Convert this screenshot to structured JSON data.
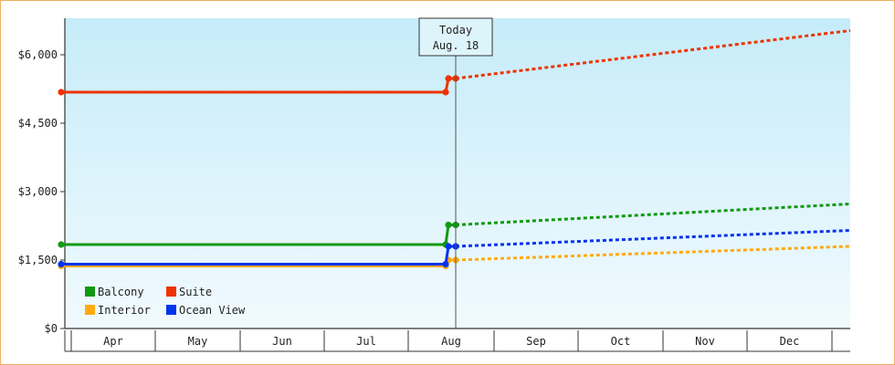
{
  "chart_data": {
    "type": "line",
    "title": "",
    "xlabel": "",
    "ylabel": "",
    "x_axis": {
      "categories": [
        "Apr",
        "May",
        "Jun",
        "Jul",
        "Aug",
        "Sep",
        "Oct",
        "Nov",
        "Dec"
      ]
    },
    "y_axis": {
      "ylim": [
        0,
        6800
      ],
      "ticks": [
        0,
        1500,
        3000,
        4500,
        6000
      ],
      "tick_labels": [
        "$0",
        "$1,500",
        "$3,000",
        "$4,500",
        "$6,000"
      ]
    },
    "grid": false,
    "legend_placement": "bottom-left",
    "today_marker": {
      "line1": "Today",
      "line2": "Aug. 18",
      "x": "Aug 18"
    },
    "series": [
      {
        "name": "Balcony",
        "color": "#119911",
        "historical": [
          [
            "Apr 1",
            1840
          ],
          [
            "Aug 16",
            1840
          ],
          [
            "Aug 17",
            2270
          ],
          [
            "Aug 18",
            2270
          ]
        ],
        "forecast": [
          [
            "Aug 18",
            2270
          ],
          [
            "Dec 31",
            2730
          ]
        ]
      },
      {
        "name": "Suite",
        "color": "#ee3300",
        "historical": [
          [
            "Apr 1",
            5180
          ],
          [
            "Aug 16",
            5180
          ],
          [
            "Aug 17",
            5480
          ],
          [
            "Aug 18",
            5480
          ]
        ],
        "forecast": [
          [
            "Aug 18",
            5480
          ],
          [
            "Dec 31",
            6530
          ]
        ]
      },
      {
        "name": "Interior",
        "color": "#ffaa11",
        "historical": [
          [
            "Apr 1",
            1370
          ],
          [
            "Aug 16",
            1370
          ],
          [
            "Aug 17",
            1500
          ],
          [
            "Aug 18",
            1500
          ]
        ],
        "forecast": [
          [
            "Aug 18",
            1500
          ],
          [
            "Dec 31",
            1800
          ]
        ]
      },
      {
        "name": "Ocean View",
        "color": "#0033ee",
        "historical": [
          [
            "Apr 1",
            1410
          ],
          [
            "Aug 16",
            1410
          ],
          [
            "Aug 17",
            1800
          ],
          [
            "Aug 18",
            1800
          ]
        ],
        "forecast": [
          [
            "Aug 18",
            1800
          ],
          [
            "Dec 31",
            2150
          ]
        ]
      }
    ]
  }
}
